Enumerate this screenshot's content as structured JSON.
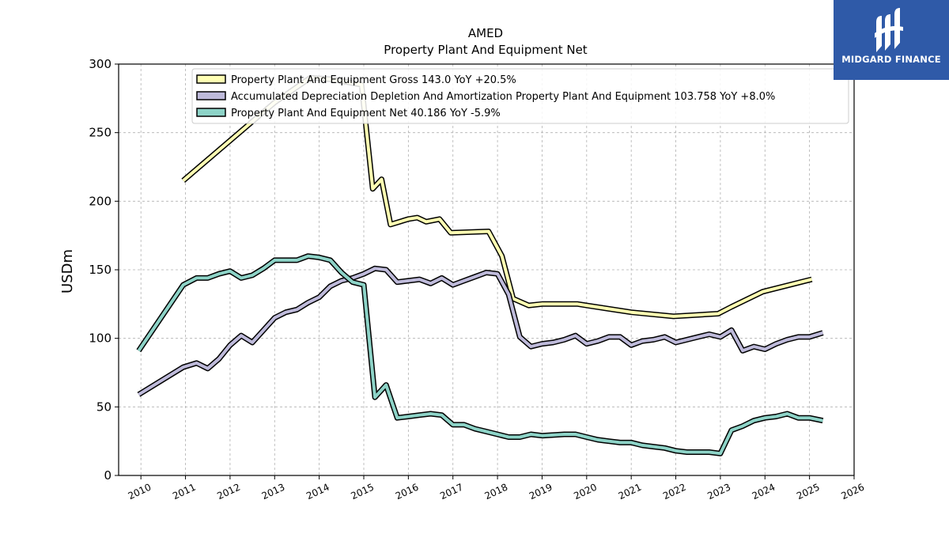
{
  "brand": {
    "name": "MIDGARD FINANCE",
    "bg_color": "#2f5aa8"
  },
  "chart_data": {
    "type": "line",
    "title": "AMED",
    "subtitle": "Property Plant And Equipment Net",
    "ylabel": "USDm",
    "xlabel": "",
    "xlim": [
      2009.5,
      2026
    ],
    "ylim": [
      0,
      300
    ],
    "grid": true,
    "legend_position": "top",
    "x_ticks": [
      "2010",
      "2011",
      "2012",
      "2013",
      "2014",
      "2015",
      "2016",
      "2017",
      "2018",
      "2019",
      "2020",
      "2021",
      "2022",
      "2023",
      "2024",
      "2025",
      "2026"
    ],
    "y_ticks": [
      "0",
      "50",
      "100",
      "150",
      "200",
      "250",
      "300"
    ],
    "series": [
      {
        "name": "Property Plant And Equipment Gross",
        "legend": "Property Plant And Equipment Gross  143.0 YoY +20.5%",
        "color": "#ffffb3",
        "points": [
          [
            2010.95,
            215
          ],
          [
            2013.0,
            272
          ],
          [
            2013.8,
            290
          ],
          [
            2014.25,
            289
          ],
          [
            2014.6,
            287
          ],
          [
            2014.95,
            285
          ],
          [
            2015.2,
            209
          ],
          [
            2015.4,
            216
          ],
          [
            2015.6,
            183
          ],
          [
            2016.0,
            187
          ],
          [
            2016.2,
            188
          ],
          [
            2016.4,
            185
          ],
          [
            2016.7,
            187
          ],
          [
            2016.95,
            177
          ],
          [
            2017.8,
            178
          ],
          [
            2018.1,
            160
          ],
          [
            2018.35,
            129
          ],
          [
            2018.7,
            124
          ],
          [
            2019.0,
            125
          ],
          [
            2019.8,
            125
          ],
          [
            2020.0,
            124
          ],
          [
            2021.0,
            119
          ],
          [
            2021.95,
            116
          ],
          [
            2022.95,
            118
          ],
          [
            2023.25,
            123
          ],
          [
            2023.95,
            134
          ],
          [
            2025.05,
            143
          ]
        ]
      },
      {
        "name": "Accumulated Depreciation Depletion And Amortization Property Plant And Equipment",
        "legend": "Accumulated Depreciation Depletion And Amortization Property Plant And Equipment  103.758 YoY +8.0%",
        "color": "#bebada",
        "points": [
          [
            2009.95,
            59
          ],
          [
            2010.95,
            79
          ],
          [
            2011.25,
            82
          ],
          [
            2011.5,
            78
          ],
          [
            2011.75,
            85
          ],
          [
            2012.0,
            95
          ],
          [
            2012.25,
            102
          ],
          [
            2012.5,
            97
          ],
          [
            2012.75,
            106
          ],
          [
            2013.0,
            115
          ],
          [
            2013.25,
            119
          ],
          [
            2013.5,
            121
          ],
          [
            2013.75,
            126
          ],
          [
            2014.0,
            130
          ],
          [
            2014.25,
            138
          ],
          [
            2014.5,
            142
          ],
          [
            2014.75,
            144
          ],
          [
            2015.0,
            147
          ],
          [
            2015.25,
            151
          ],
          [
            2015.5,
            150
          ],
          [
            2015.75,
            141
          ],
          [
            2016.0,
            142
          ],
          [
            2016.25,
            143
          ],
          [
            2016.5,
            140
          ],
          [
            2016.75,
            144
          ],
          [
            2017.0,
            139
          ],
          [
            2017.25,
            142
          ],
          [
            2017.5,
            145
          ],
          [
            2017.75,
            148
          ],
          [
            2018.0,
            147
          ],
          [
            2018.25,
            132
          ],
          [
            2018.5,
            101
          ],
          [
            2018.75,
            94
          ],
          [
            2019.0,
            96
          ],
          [
            2019.25,
            97
          ],
          [
            2019.5,
            99
          ],
          [
            2019.75,
            102
          ],
          [
            2020.0,
            96
          ],
          [
            2020.25,
            98
          ],
          [
            2020.5,
            101
          ],
          [
            2020.75,
            101
          ],
          [
            2021.0,
            95
          ],
          [
            2021.25,
            98
          ],
          [
            2021.5,
            99
          ],
          [
            2021.75,
            101
          ],
          [
            2022.0,
            97
          ],
          [
            2022.25,
            99
          ],
          [
            2022.5,
            101
          ],
          [
            2022.75,
            103
          ],
          [
            2023.0,
            101
          ],
          [
            2023.25,
            106
          ],
          [
            2023.5,
            91
          ],
          [
            2023.75,
            94
          ],
          [
            2024.0,
            92
          ],
          [
            2024.25,
            96
          ],
          [
            2024.5,
            99
          ],
          [
            2024.75,
            101
          ],
          [
            2025.0,
            101
          ],
          [
            2025.3,
            104
          ]
        ]
      },
      {
        "name": "Property Plant And Equipment Net",
        "legend": "Property Plant And Equipment Net  40.186 YoY -5.9%",
        "color": "#8dd3c7",
        "points": [
          [
            2009.95,
            91
          ],
          [
            2010.95,
            139
          ],
          [
            2011.25,
            144
          ],
          [
            2011.5,
            144
          ],
          [
            2011.75,
            147
          ],
          [
            2012.0,
            149
          ],
          [
            2012.25,
            144
          ],
          [
            2012.5,
            146
          ],
          [
            2012.75,
            151
          ],
          [
            2013.0,
            157
          ],
          [
            2013.25,
            157
          ],
          [
            2013.5,
            157
          ],
          [
            2013.75,
            160
          ],
          [
            2014.0,
            159
          ],
          [
            2014.25,
            157
          ],
          [
            2014.5,
            148
          ],
          [
            2014.75,
            141
          ],
          [
            2015.0,
            139
          ],
          [
            2015.25,
            57
          ],
          [
            2015.5,
            66
          ],
          [
            2015.75,
            42
          ],
          [
            2016.0,
            43
          ],
          [
            2016.25,
            44
          ],
          [
            2016.5,
            45
          ],
          [
            2016.75,
            44
          ],
          [
            2017.0,
            37
          ],
          [
            2017.25,
            37
          ],
          [
            2017.5,
            34
          ],
          [
            2017.75,
            32
          ],
          [
            2018.0,
            30
          ],
          [
            2018.25,
            28
          ],
          [
            2018.5,
            28
          ],
          [
            2018.75,
            30
          ],
          [
            2019.0,
            29
          ],
          [
            2019.5,
            30
          ],
          [
            2019.75,
            30
          ],
          [
            2020.0,
            28
          ],
          [
            2020.25,
            26
          ],
          [
            2020.5,
            25
          ],
          [
            2020.75,
            24
          ],
          [
            2021.0,
            24
          ],
          [
            2021.25,
            22
          ],
          [
            2021.5,
            21
          ],
          [
            2021.75,
            20
          ],
          [
            2022.0,
            18
          ],
          [
            2022.25,
            17
          ],
          [
            2022.5,
            17
          ],
          [
            2022.75,
            17
          ],
          [
            2023.0,
            16
          ],
          [
            2023.25,
            33
          ],
          [
            2023.5,
            36
          ],
          [
            2023.75,
            40
          ],
          [
            2024.0,
            42
          ],
          [
            2024.25,
            43
          ],
          [
            2024.5,
            45
          ],
          [
            2024.75,
            42
          ],
          [
            2025.0,
            42
          ],
          [
            2025.3,
            40
          ]
        ]
      }
    ]
  }
}
